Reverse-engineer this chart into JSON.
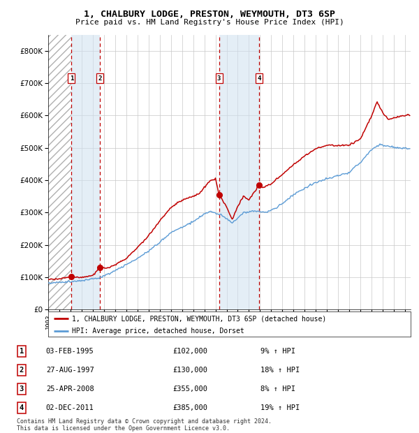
{
  "title": "1, CHALBURY LODGE, PRESTON, WEYMOUTH, DT3 6SP",
  "subtitle": "Price paid vs. HM Land Registry's House Price Index (HPI)",
  "property_label": "1, CHALBURY LODGE, PRESTON, WEYMOUTH, DT3 6SP (detached house)",
  "hpi_label": "HPI: Average price, detached house, Dorset",
  "footer1": "Contains HM Land Registry data © Crown copyright and database right 2024.",
  "footer2": "This data is licensed under the Open Government Licence v3.0.",
  "sales": [
    {
      "num": 1,
      "date": "03-FEB-1995",
      "price": 102000,
      "pct": "9%",
      "dir": "↑"
    },
    {
      "num": 2,
      "date": "27-AUG-1997",
      "price": 130000,
      "pct": "18%",
      "dir": "↑"
    },
    {
      "num": 3,
      "date": "25-APR-2008",
      "price": 355000,
      "pct": "8%",
      "dir": "↑"
    },
    {
      "num": 4,
      "date": "02-DEC-2011",
      "price": 385000,
      "pct": "19%",
      "dir": "↑"
    }
  ],
  "sale_dates_decimal": [
    1995.09,
    1997.65,
    2008.32,
    2011.92
  ],
  "sale_prices": [
    102000,
    130000,
    355000,
    385000
  ],
  "hpi_color": "#5b9bd5",
  "property_color": "#c00000",
  "sale_marker_color": "#c00000",
  "dashed_line_color": "#c00000",
  "shade_color": "#cfe0f0",
  "grid_color": "#c8c8c8",
  "background_color": "#ffffff",
  "ylim": [
    0,
    850000
  ],
  "yticks": [
    0,
    100000,
    200000,
    300000,
    400000,
    500000,
    600000,
    700000,
    800000
  ],
  "xlim_start": 1993.0,
  "xlim_end": 2025.5
}
